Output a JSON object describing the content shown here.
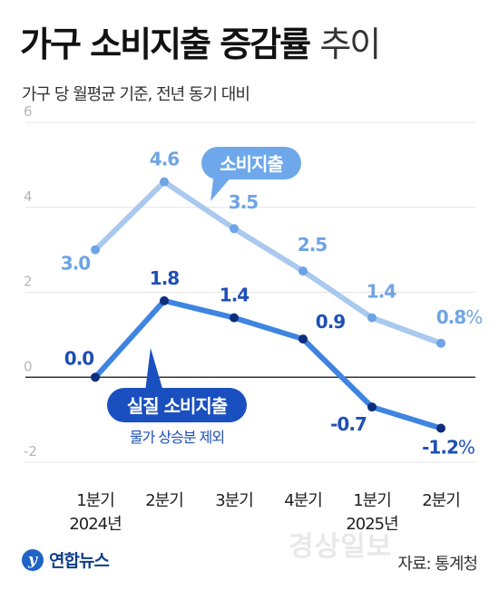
{
  "header": {
    "title_main": "가구 소비지출 증감률",
    "title_suffix": "추이",
    "subtitle": "가구 당 월평균 기준, 전년 동기 대비"
  },
  "footer": {
    "logo_text": "연합뉴스",
    "watermark": "경상일보",
    "source": "자료: 통계청"
  },
  "colors": {
    "consumption": "#a9c9ee",
    "consumption_label": "#6ea4e4",
    "real": "#3e84e0",
    "real_marker": "#0d2e7c",
    "real_label": "#1f4fb5",
    "callout_light": "#6ea8ea",
    "callout_dark": "#1a4fc0"
  },
  "chart_data": {
    "type": "line",
    "categories": [
      "1분기",
      "2분기",
      "3분기",
      "4분기",
      "1분기",
      "2분기"
    ],
    "year_labels": [
      {
        "text": "2024년",
        "index": 0
      },
      {
        "text": "2025년",
        "index": 4
      }
    ],
    "yticks": [
      "6",
      "4",
      "2",
      "0",
      "-2"
    ],
    "ylim": [
      -2,
      6
    ],
    "grid": true,
    "series": [
      {
        "name": "소비지출",
        "values": [
          3.0,
          4.6,
          3.5,
          2.5,
          1.4,
          0.8
        ],
        "labels": [
          "3.0",
          "4.6",
          "3.5",
          "2.5",
          "1.4",
          "0.8%"
        ]
      },
      {
        "name": "실질 소비지출",
        "note": "물가 상승분 제외",
        "values": [
          0.0,
          1.8,
          1.4,
          0.9,
          -0.7,
          -1.2
        ],
        "labels": [
          "0.0",
          "1.8",
          "1.4",
          "0.9",
          "-0.7",
          "-1.2%"
        ]
      }
    ]
  }
}
